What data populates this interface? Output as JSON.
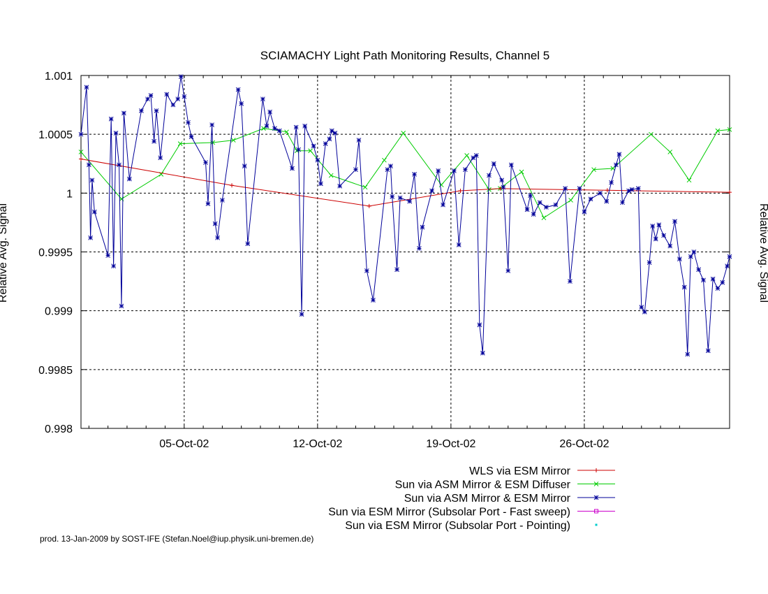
{
  "chart_data": {
    "type": "line",
    "title": "SCIAMACHY Light Path Monitoring Results, Channel 5",
    "ylabel": "Relative Avg. Signal",
    "y2label": "Relative Avg. Signal",
    "ylim": [
      0.998,
      1.001
    ],
    "yticks": [
      "1.001",
      "1.0005",
      "1",
      "0.9995",
      "0.999",
      "0.9985",
      "0.998"
    ],
    "xlim": [
      "2002-09-29T14:00",
      "2002-11-02T15:00"
    ],
    "xticks": [
      {
        "date": "2002-10-05",
        "label": "05-Oct-02"
      },
      {
        "date": "2002-10-12",
        "label": "12-Oct-02"
      },
      {
        "date": "2002-10-19",
        "label": "19-Oct-02"
      },
      {
        "date": "2002-10-26",
        "label": "26-Oct-02"
      }
    ],
    "grid": true,
    "legend_position": "below-right",
    "footer": "prod. 13-Jan-2009 by SOST-IFE (Stefan.Noel@iup.physik.uni-bremen.de)",
    "series": [
      {
        "name": "WLS via ESM Mirror",
        "color": "#cc0000",
        "marker": "plus",
        "line": true,
        "points": [
          [
            "2002-09-29T14:00",
            1.00029
          ],
          [
            "2002-10-07T12:00",
            1.000066
          ],
          [
            "2002-10-14T17:00",
            0.99989
          ],
          [
            "2002-10-19T12:00",
            1.00002
          ],
          [
            "2002-10-21T14:00",
            1.000038
          ],
          [
            "2002-10-27T05:00",
            1.000024
          ],
          [
            "2002-11-02T15:00",
            1.000007
          ]
        ]
      },
      {
        "name": "Sun via ASM Mirror & ESM Diffuser",
        "color": "#00cc00",
        "marker": "x",
        "line": true,
        "points": [
          [
            "2002-09-29T14:00",
            1.00035
          ],
          [
            "2002-10-01T17:00",
            0.99995
          ],
          [
            "2002-10-03T19:00",
            1.00016
          ],
          [
            "2002-10-04T19:00",
            1.00042
          ],
          [
            "2002-10-06T12:00",
            1.00043
          ],
          [
            "2002-10-07T14:00",
            1.00045
          ],
          [
            "2002-10-09T04:00",
            1.00055
          ],
          [
            "2002-10-10T09:00",
            1.00052
          ],
          [
            "2002-10-10T22:00",
            1.00036
          ],
          [
            "2002-10-11T15:00",
            1.00036
          ],
          [
            "2002-10-12T17:00",
            1.00015
          ],
          [
            "2002-10-14T12:00",
            1.00005
          ],
          [
            "2002-10-15T12:00",
            1.00028
          ],
          [
            "2002-10-16T12:00",
            1.00051
          ],
          [
            "2002-10-18T12:00",
            1.00007
          ],
          [
            "2002-10-19T20:00",
            1.00032
          ],
          [
            "2002-10-21T00:00",
            1.00003
          ],
          [
            "2002-10-21T14:00",
            1.00004
          ],
          [
            "2002-10-22T17:00",
            1.00018
          ],
          [
            "2002-10-23T21:00",
            0.99979
          ],
          [
            "2002-10-25T07:00",
            0.99994
          ],
          [
            "2002-10-26T12:00",
            1.0002
          ],
          [
            "2002-10-27T12:00",
            1.00021
          ],
          [
            "2002-10-29T12:00",
            1.0005
          ],
          [
            "2002-10-30T12:00",
            1.00035
          ],
          [
            "2002-10-31T12:00",
            1.00011
          ],
          [
            "2002-11-02T00:00",
            1.00053
          ],
          [
            "2002-11-02T15:00",
            1.00054
          ]
        ]
      },
      {
        "name": "Sun via ASM Mirror & ESM Mirror",
        "color": "#000099",
        "marker": "star",
        "line": true,
        "points": [
          [
            "2002-09-29T14:00",
            1.0005
          ],
          [
            "2002-09-29T21:00",
            1.0009
          ],
          [
            "2002-09-30T00:00",
            1.00024
          ],
          [
            "2002-09-30T02:00",
            0.99962
          ],
          [
            "2002-09-30T04:00",
            1.00011
          ],
          [
            "2002-09-30T07:00",
            0.99984
          ],
          [
            "2002-10-01T00:00",
            0.99947
          ],
          [
            "2002-10-01T04:00",
            1.00063
          ],
          [
            "2002-10-01T07:00",
            0.99938
          ],
          [
            "2002-10-01T10:00",
            1.00051
          ],
          [
            "2002-10-01T14:00",
            1.00024
          ],
          [
            "2002-10-01T17:00",
            0.99904
          ],
          [
            "2002-10-01T20:00",
            1.00068
          ],
          [
            "2002-10-02T03:00",
            1.00012
          ],
          [
            "2002-10-02T18:00",
            1.0007
          ],
          [
            "2002-10-03T02:00",
            1.0008
          ],
          [
            "2002-10-03T06:00",
            1.00083
          ],
          [
            "2002-10-03T10:00",
            1.00044
          ],
          [
            "2002-10-03T13:00",
            1.0007
          ],
          [
            "2002-10-03T18:00",
            1.0003
          ],
          [
            "2002-10-04T02:00",
            1.00084
          ],
          [
            "2002-10-04T10:00",
            1.00075
          ],
          [
            "2002-10-04T16:00",
            1.0008
          ],
          [
            "2002-10-04T20:00",
            1.00099
          ],
          [
            "2002-10-05T00:00",
            1.00082
          ],
          [
            "2002-10-05T05:00",
            1.0006
          ],
          [
            "2002-10-05T09:00",
            1.00048
          ],
          [
            "2002-10-06T03:00",
            1.00026
          ],
          [
            "2002-10-06T06:00",
            0.99991
          ],
          [
            "2002-10-06T11:00",
            1.00058
          ],
          [
            "2002-10-06T15:00",
            0.99974
          ],
          [
            "2002-10-06T18:00",
            0.99962
          ],
          [
            "2002-10-07T00:00",
            0.99994
          ],
          [
            "2002-10-07T20:00",
            1.00088
          ],
          [
            "2002-10-08T00:00",
            1.00076
          ],
          [
            "2002-10-08T04:00",
            1.00023
          ],
          [
            "2002-10-08T08:00",
            0.99957
          ],
          [
            "2002-10-09T03:00",
            1.0008
          ],
          [
            "2002-10-09T08:00",
            1.00057
          ],
          [
            "2002-10-09T12:00",
            1.00069
          ],
          [
            "2002-10-09T18:00",
            1.00055
          ],
          [
            "2002-10-10T00:00",
            1.00053
          ],
          [
            "2002-10-10T16:00",
            1.00021
          ],
          [
            "2002-10-10T21:00",
            1.00056
          ],
          [
            "2002-10-11T00:00",
            1.00037
          ],
          [
            "2002-10-11T04:00",
            0.99897
          ],
          [
            "2002-10-11T08:00",
            1.00057
          ],
          [
            "2002-10-11T19:00",
            1.0004
          ],
          [
            "2002-10-12T00:00",
            1.00028
          ],
          [
            "2002-10-12T04:00",
            1.00008
          ],
          [
            "2002-10-12T10:00",
            1.00042
          ],
          [
            "2002-10-12T15:00",
            1.00046
          ],
          [
            "2002-10-12T18:00",
            1.00053
          ],
          [
            "2002-10-12T22:00",
            1.00051
          ],
          [
            "2002-10-13T04:00",
            1.00006
          ],
          [
            "2002-10-14T00:00",
            1.0002
          ],
          [
            "2002-10-14T04:00",
            1.00045
          ],
          [
            "2002-10-14T14:00",
            0.99934
          ],
          [
            "2002-10-14T22:00",
            0.99909
          ],
          [
            "2002-10-15T16:00",
            1.0002
          ],
          [
            "2002-10-15T20:00",
            1.00023
          ],
          [
            "2002-10-15T22:00",
            0.99997
          ],
          [
            "2002-10-16T04:00",
            0.99935
          ],
          [
            "2002-10-16T08:00",
            0.99996
          ],
          [
            "2002-10-16T20:00",
            0.99993
          ],
          [
            "2002-10-17T02:00",
            1.00016
          ],
          [
            "2002-10-17T08:00",
            0.99953
          ],
          [
            "2002-10-17T12:00",
            0.99971
          ],
          [
            "2002-10-18T00:00",
            1.00002
          ],
          [
            "2002-10-18T08:00",
            1.00019
          ],
          [
            "2002-10-18T14:00",
            0.9999
          ],
          [
            "2002-10-19T04:00",
            1.00019
          ],
          [
            "2002-10-19T10:00",
            0.99956
          ],
          [
            "2002-10-19T18:00",
            1.0002
          ],
          [
            "2002-10-20T04:00",
            1.0003
          ],
          [
            "2002-10-20T08:00",
            1.00032
          ],
          [
            "2002-10-20T12:00",
            0.99888
          ],
          [
            "2002-10-20T16:00",
            0.99864
          ],
          [
            "2002-10-21T00:00",
            1.00015
          ],
          [
            "2002-10-21T06:00",
            1.00025
          ],
          [
            "2002-10-21T16:00",
            1.00011
          ],
          [
            "2002-10-21T18:00",
            1.00005
          ],
          [
            "2002-10-22T00:00",
            0.99934
          ],
          [
            "2002-10-22T04:00",
            1.00024
          ],
          [
            "2002-10-23T00:00",
            0.99986
          ],
          [
            "2002-10-23T04:00",
            0.99998
          ],
          [
            "2002-10-23T08:00",
            0.99982
          ],
          [
            "2002-10-23T16:00",
            0.99992
          ],
          [
            "2002-10-24T00:00",
            0.99988
          ],
          [
            "2002-10-24T12:00",
            0.9999
          ],
          [
            "2002-10-25T00:00",
            1.00004
          ],
          [
            "2002-10-25T06:00",
            0.99925
          ],
          [
            "2002-10-25T18:00",
            1.00004
          ],
          [
            "2002-10-26T00:00",
            0.99984
          ],
          [
            "2002-10-26T08:00",
            0.99995
          ],
          [
            "2002-10-26T20:00",
            1.0
          ],
          [
            "2002-10-27T04:00",
            0.99993
          ],
          [
            "2002-10-27T10:00",
            1.00009
          ],
          [
            "2002-10-27T16:00",
            1.00024
          ],
          [
            "2002-10-27T20:00",
            1.00033
          ],
          [
            "2002-10-28T00:00",
            0.99992
          ],
          [
            "2002-10-28T08:00",
            1.00002
          ],
          [
            "2002-10-28T12:00",
            1.00003
          ],
          [
            "2002-10-28T20:00",
            1.00004
          ],
          [
            "2002-10-29T00:00",
            0.99903
          ],
          [
            "2002-10-29T04:00",
            0.99899
          ],
          [
            "2002-10-29T10:00",
            0.99941
          ],
          [
            "2002-10-29T14:00",
            0.99972
          ],
          [
            "2002-10-29T18:00",
            0.99961
          ],
          [
            "2002-10-29T22:00",
            0.99973
          ],
          [
            "2002-10-30T04:00",
            0.99964
          ],
          [
            "2002-10-30T12:00",
            0.99955
          ],
          [
            "2002-10-30T18:00",
            0.99976
          ],
          [
            "2002-10-31T00:00",
            0.99944
          ],
          [
            "2002-10-31T06:00",
            0.9992
          ],
          [
            "2002-10-31T10:00",
            0.99863
          ],
          [
            "2002-10-31T14:00",
            0.99946
          ],
          [
            "2002-10-31T18:00",
            0.9995
          ],
          [
            "2002-11-01T00:00",
            0.99935
          ],
          [
            "2002-11-01T06:00",
            0.99926
          ],
          [
            "2002-11-01T12:00",
            0.99866
          ],
          [
            "2002-11-01T18:00",
            0.99927
          ],
          [
            "2002-11-02T00:00",
            0.99919
          ],
          [
            "2002-11-02T06:00",
            0.99924
          ],
          [
            "2002-11-02T12:00",
            0.99938
          ],
          [
            "2002-11-02T15:00",
            0.99946
          ]
        ]
      },
      {
        "name": "Sun via ESM Mirror (Subsolar Port - Fast sweep)",
        "color": "#cc00cc",
        "marker": "square",
        "line": true,
        "points": []
      },
      {
        "name": "Sun via ESM Mirror (Subsolar Port - Pointing)",
        "color": "#00cccc",
        "marker": "dot",
        "line": false,
        "points": []
      }
    ]
  }
}
